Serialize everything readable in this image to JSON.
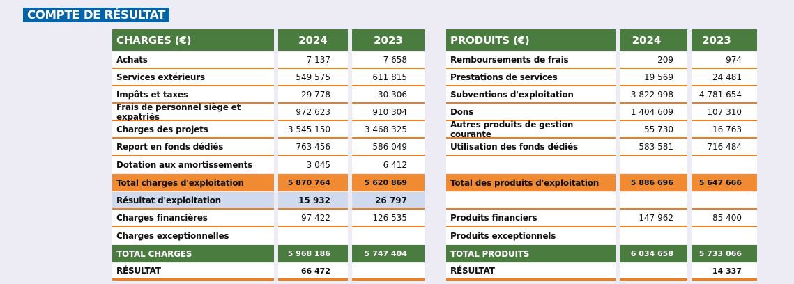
{
  "title": "COMPTE DE RÉSULTAT",
  "charges": {
    "headers": [
      "CHARGES (€)",
      "2024",
      "2023"
    ],
    "rows": [
      {
        "label": "Achats",
        "v2024": "7 137",
        "v2023": "7 658",
        "kind": "normal"
      },
      {
        "label": "Services extérieurs",
        "v2024": "549 575",
        "v2023": "611 815",
        "kind": "normal"
      },
      {
        "label": "Impôts et taxes",
        "v2024": "29 778",
        "v2023": "30 306",
        "kind": "normal"
      },
      {
        "label": "Frais de personnel siège et expatriés",
        "v2024": "972 623",
        "v2023": "910 304",
        "kind": "normal"
      },
      {
        "label": "Charges des projets",
        "v2024": "3 545 150",
        "v2023": "3 468 325",
        "kind": "normal"
      },
      {
        "label": "Report en fonds dédiés",
        "v2024": "763 456",
        "v2023": "586 049",
        "kind": "normal"
      },
      {
        "label": "Dotation aux amortissements",
        "v2024": "3 045",
        "v2023": "6 412",
        "kind": "nob"
      },
      {
        "label": "Total charges d'exploitation",
        "v2024": "5 870 764",
        "v2023": "5 620 869",
        "kind": "total"
      },
      {
        "label": "Résultat d'exploitation",
        "v2024": "15 932",
        "v2023": "26 797",
        "kind": "result"
      },
      {
        "label": "Charges financières",
        "v2024": "97 422",
        "v2023": "126 535",
        "kind": "normal"
      },
      {
        "label": "Charges exceptionnelles",
        "v2024": "",
        "v2023": "",
        "kind": "nob"
      },
      {
        "label": "TOTAL CHARGES",
        "v2024": "5 968 186",
        "v2023": "5 747 404",
        "kind": "grand"
      },
      {
        "label": "RÉSULTAT",
        "v2024": "66 472",
        "v2023": "",
        "kind": "final"
      }
    ]
  },
  "produits": {
    "headers": [
      "PRODUITS (€)",
      "2024",
      "2023"
    ],
    "rows": [
      {
        "label": "Remboursements de frais",
        "v2024": "209",
        "v2023": "974",
        "kind": "normal"
      },
      {
        "label": "Prestations de services",
        "v2024": "19 569",
        "v2023": "24 481",
        "kind": "normal"
      },
      {
        "label": "Subventions d'exploitation",
        "v2024": "3 822 998",
        "v2023": "4 781 654",
        "kind": "normal"
      },
      {
        "label": "Dons",
        "v2024": "1 404 609",
        "v2023": "107 310",
        "kind": "normal"
      },
      {
        "label": "Autres produits de gestion courante",
        "v2024": "55 730",
        "v2023": "16 763",
        "kind": "normal"
      },
      {
        "label": "Utilisation des fonds dédiés",
        "v2024": "583 581",
        "v2023": "716 484",
        "kind": "normal"
      },
      {
        "label": "",
        "v2024": "",
        "v2023": "",
        "kind": "nob"
      },
      {
        "label": "Total des produits d'exploitation",
        "v2024": "5 886 696",
        "v2023": "5 647 666",
        "kind": "total"
      },
      {
        "label": "",
        "v2024": "",
        "v2023": "",
        "kind": "normal"
      },
      {
        "label": "Produits financiers",
        "v2024": "147 962",
        "v2023": "85 400",
        "kind": "normal"
      },
      {
        "label": "Produits exceptionnels",
        "v2024": "",
        "v2023": "",
        "kind": "nob"
      },
      {
        "label": "TOTAL PRODUITS",
        "v2024": "6 034 658",
        "v2023": "5 733 066",
        "kind": "grand"
      },
      {
        "label": "RÉSULTAT",
        "v2024": "",
        "v2023": "14 337",
        "kind": "final"
      }
    ]
  },
  "colors": {
    "title_bg": "#0563a8",
    "header_green": "#4a7b3f",
    "total_orange": "#f08a33",
    "result_blue": "#cfdaee",
    "rule_orange": "#ee7d1e"
  }
}
